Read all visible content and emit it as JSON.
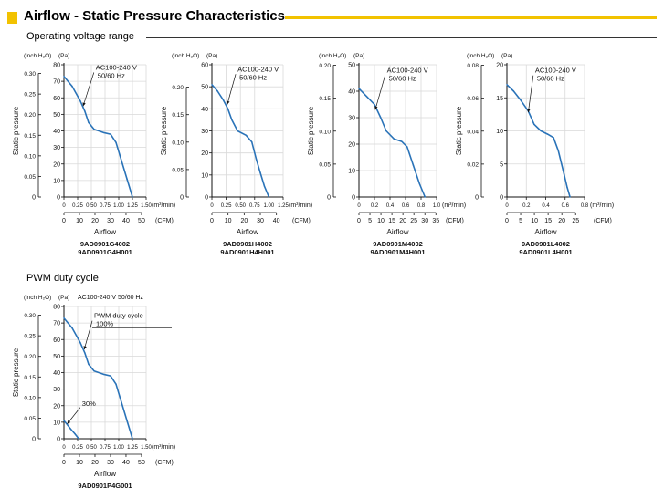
{
  "page_title": "Airflow - Static Pressure Characteristics",
  "colors": {
    "accent": "#f2c200",
    "curve": "#2a73b8",
    "grid": "#d9d9d9"
  },
  "sections": {
    "operating": "Operating voltage range",
    "pwm": "PWM duty cycle"
  },
  "chart_data": [
    {
      "type": "line",
      "units": {
        "inch": "(inch H₂O)",
        "pa": "(Pa)",
        "m3": "(m³/min)",
        "cfm": "(CFM)"
      },
      "ylabel": "Static pressure",
      "xlabel": "Airflow",
      "ylim": [
        0,
        80
      ],
      "xlim": [
        0,
        1.5
      ],
      "pa_ticks": [
        0,
        10,
        20,
        30,
        40,
        50,
        60,
        70,
        80
      ],
      "inch_ticks": [
        {
          "v": 0.05,
          "label": "0.05"
        },
        {
          "v": 0.1,
          "label": "0.10"
        },
        {
          "v": 0.15,
          "label": "0.15"
        },
        {
          "v": 0.2,
          "label": "0.20"
        },
        {
          "v": 0.25,
          "label": "0.25"
        },
        {
          "v": 0.3,
          "label": "0.30"
        }
      ],
      "m3_ticks": [
        {
          "v": 0,
          "label": "0"
        },
        {
          "v": 0.25,
          "label": "0.25"
        },
        {
          "v": 0.5,
          "label": "0.50"
        },
        {
          "v": 0.75,
          "label": "0.75"
        },
        {
          "v": 1.0,
          "label": "1.00"
        },
        {
          "v": 1.25,
          "label": "1.25"
        },
        {
          "v": 1.5,
          "label": "1.50"
        }
      ],
      "cfm_ticks": [
        0,
        10,
        20,
        30,
        40,
        50
      ],
      "series": [
        {
          "name": "AC100-240 V 50/60 Hz",
          "x": [
            0,
            0.15,
            0.3,
            0.38,
            0.45,
            0.55,
            0.72,
            0.85,
            0.95,
            1.05,
            1.15,
            1.25
          ],
          "y": [
            73,
            67,
            58,
            52,
            45,
            41,
            39,
            38,
            33,
            22,
            11,
            0
          ]
        }
      ],
      "annotations": [
        {
          "line1": "AC100-240 V",
          "line2": "50/60 Hz",
          "tx": 0.58,
          "ty": 77,
          "ax": 0.35,
          "ay": 55
        }
      ],
      "model_lines": [
        "9AD0901G4002",
        "9AD0901G4H001"
      ]
    },
    {
      "type": "line",
      "units": {
        "inch": "(inch H₂O)",
        "pa": "(Pa)",
        "m3": "(m³/min)",
        "cfm": "(CFM)"
      },
      "ylabel": "Static pressure",
      "xlabel": "Airflow",
      "ylim": [
        0,
        60
      ],
      "xlim": [
        0,
        1.25
      ],
      "pa_ticks": [
        0,
        10,
        20,
        30,
        40,
        50,
        60
      ],
      "inch_ticks": [
        {
          "v": 0.05,
          "label": "0.05"
        },
        {
          "v": 0.1,
          "label": "0.10"
        },
        {
          "v": 0.15,
          "label": "0.15"
        },
        {
          "v": 0.2,
          "label": "0.20"
        }
      ],
      "m3_ticks": [
        {
          "v": 0,
          "label": "0"
        },
        {
          "v": 0.25,
          "label": "0.25"
        },
        {
          "v": 0.5,
          "label": "0.50"
        },
        {
          "v": 0.75,
          "label": "0.75"
        },
        {
          "v": 1.0,
          "label": "1.00"
        },
        {
          "v": 1.25,
          "label": "1.25"
        }
      ],
      "cfm_ticks": [
        0,
        10,
        20,
        30,
        40
      ],
      "series": [
        {
          "name": "AC100-240 V 50/60 Hz",
          "x": [
            0,
            0.1,
            0.2,
            0.28,
            0.35,
            0.45,
            0.6,
            0.7,
            0.78,
            0.85,
            0.92,
            1.0
          ],
          "y": [
            51,
            48,
            44,
            40,
            35,
            30,
            28,
            25,
            17,
            11,
            5,
            0
          ]
        }
      ],
      "annotations": [
        {
          "line1": "AC100-240 V",
          "line2": "50/60 Hz",
          "tx": 0.45,
          "ty": 57,
          "ax": 0.27,
          "ay": 42
        }
      ],
      "model_lines": [
        "9AD0901H4002",
        "9AD0901H4H001"
      ]
    },
    {
      "type": "line",
      "units": {
        "inch": "(inch H₂O)",
        "pa": "(Pa)",
        "m3": "(m³/min)",
        "cfm": "(CFM)"
      },
      "ylabel": "Static pressure",
      "xlabel": "Airflow",
      "ylim": [
        0,
        50
      ],
      "xlim": [
        0,
        1.0
      ],
      "pa_ticks": [
        0,
        10,
        20,
        30,
        40,
        50
      ],
      "inch_ticks": [
        {
          "v": 0.05,
          "label": "0.05"
        },
        {
          "v": 0.1,
          "label": "0.10"
        },
        {
          "v": 0.15,
          "label": "0.15"
        },
        {
          "v": 0.2,
          "label": "0.20"
        }
      ],
      "m3_ticks": [
        {
          "v": 0,
          "label": "0"
        },
        {
          "v": 0.2,
          "label": "0.2"
        },
        {
          "v": 0.4,
          "label": "0.4"
        },
        {
          "v": 0.6,
          "label": "0.6"
        },
        {
          "v": 0.8,
          "label": "0.8"
        },
        {
          "v": 1.0,
          "label": "1.0"
        }
      ],
      "cfm_ticks": [
        0,
        5,
        10,
        15,
        20,
        25,
        30,
        35
      ],
      "series": [
        {
          "name": "AC100-240 V 50/60 Hz",
          "x": [
            0,
            0.1,
            0.2,
            0.28,
            0.35,
            0.45,
            0.55,
            0.62,
            0.7,
            0.78,
            0.85
          ],
          "y": [
            41,
            38,
            35,
            30,
            25,
            22,
            21,
            19,
            12,
            5,
            0
          ]
        }
      ],
      "annotations": [
        {
          "line1": "AC100-240 V",
          "line2": "50/60 Hz",
          "tx": 0.36,
          "ty": 47,
          "ax": 0.21,
          "ay": 33
        }
      ],
      "model_lines": [
        "9AD0901M4002",
        "9AD0901M4H001"
      ]
    },
    {
      "type": "line",
      "units": {
        "inch": "(inch H₂O)",
        "pa": "(Pa)",
        "m3": "(m³/min)",
        "cfm": "(CFM)"
      },
      "ylabel": "Static pressure",
      "xlabel": "Airflow",
      "ylim": [
        0,
        20
      ],
      "xlim": [
        0,
        0.8
      ],
      "pa_ticks": [
        0,
        5,
        10,
        15,
        20
      ],
      "inch_ticks": [
        {
          "v": 0.02,
          "label": "0.02"
        },
        {
          "v": 0.04,
          "label": "0.04"
        },
        {
          "v": 0.06,
          "label": "0.06"
        },
        {
          "v": 0.08,
          "label": "0.08"
        }
      ],
      "m3_ticks": [
        {
          "v": 0,
          "label": "0"
        },
        {
          "v": 0.2,
          "label": "0.2"
        },
        {
          "v": 0.4,
          "label": "0.4"
        },
        {
          "v": 0.6,
          "label": "0.6"
        },
        {
          "v": 0.8,
          "label": "0.8"
        }
      ],
      "cfm_ticks": [
        0,
        5,
        10,
        15,
        20,
        25
      ],
      "series": [
        {
          "name": "AC100-240 V 50/60 Hz",
          "x": [
            0,
            0.07,
            0.15,
            0.22,
            0.28,
            0.35,
            0.42,
            0.48,
            0.53,
            0.58,
            0.62,
            0.65
          ],
          "y": [
            17,
            16,
            14.5,
            13,
            11,
            10,
            9.5,
            9,
            7,
            4,
            1.5,
            0
          ]
        }
      ],
      "annotations": [
        {
          "line1": "AC100-240 V",
          "line2": "50/60 Hz",
          "tx": 0.29,
          "ty": 18.8,
          "ax": 0.22,
          "ay": 12.8
        }
      ],
      "model_lines": [
        "9AD0901L4002",
        "9AD0901L4H001"
      ]
    },
    {
      "type": "line",
      "units": {
        "inch": "(inch H₂O)",
        "pa": "(Pa)",
        "m3": "(m³/min)",
        "cfm": "(CFM)"
      },
      "ylabel": "Static pressure",
      "xlabel": "Airflow",
      "ylim": [
        0,
        80
      ],
      "xlim": [
        0,
        1.5
      ],
      "header": "AC100-240 V  50/60 Hz",
      "pa_ticks": [
        0,
        10,
        20,
        30,
        40,
        50,
        60,
        70,
        80
      ],
      "inch_ticks": [
        {
          "v": 0.05,
          "label": "0.05"
        },
        {
          "v": 0.1,
          "label": "0.10"
        },
        {
          "v": 0.15,
          "label": "0.15"
        },
        {
          "v": 0.2,
          "label": "0.20"
        },
        {
          "v": 0.25,
          "label": "0.25"
        },
        {
          "v": 0.3,
          "label": "0.30"
        }
      ],
      "m3_ticks": [
        {
          "v": 0,
          "label": "0"
        },
        {
          "v": 0.25,
          "label": "0.25"
        },
        {
          "v": 0.5,
          "label": "0.50"
        },
        {
          "v": 0.75,
          "label": "0.75"
        },
        {
          "v": 1.0,
          "label": "1.00"
        },
        {
          "v": 1.25,
          "label": "1.25"
        },
        {
          "v": 1.5,
          "label": "1.50"
        }
      ],
      "cfm_ticks": [
        0,
        10,
        20,
        30,
        40,
        50
      ],
      "series": [
        {
          "name": "100%",
          "x": [
            0,
            0.15,
            0.3,
            0.38,
            0.45,
            0.55,
            0.72,
            0.85,
            0.95,
            1.05,
            1.15,
            1.25
          ],
          "y": [
            73,
            67,
            58,
            52,
            45,
            41,
            39,
            38,
            33,
            22,
            11,
            0
          ]
        },
        {
          "name": "30%",
          "x": [
            0,
            0.05,
            0.12,
            0.2,
            0.27
          ],
          "y": [
            11,
            9,
            6,
            3,
            0
          ]
        }
      ],
      "annotations": [
        {
          "line1": "PWM duty cycle",
          "line2": "100%",
          "tx": 0.55,
          "ty": 73,
          "ax": 0.37,
          "ay": 54,
          "underline": true
        },
        {
          "line1": "30%",
          "line2": "",
          "tx": 0.33,
          "ty": 20,
          "ax": 0.06,
          "ay": 9
        }
      ],
      "model_lines": [
        "9AD0901P4G001"
      ]
    }
  ]
}
